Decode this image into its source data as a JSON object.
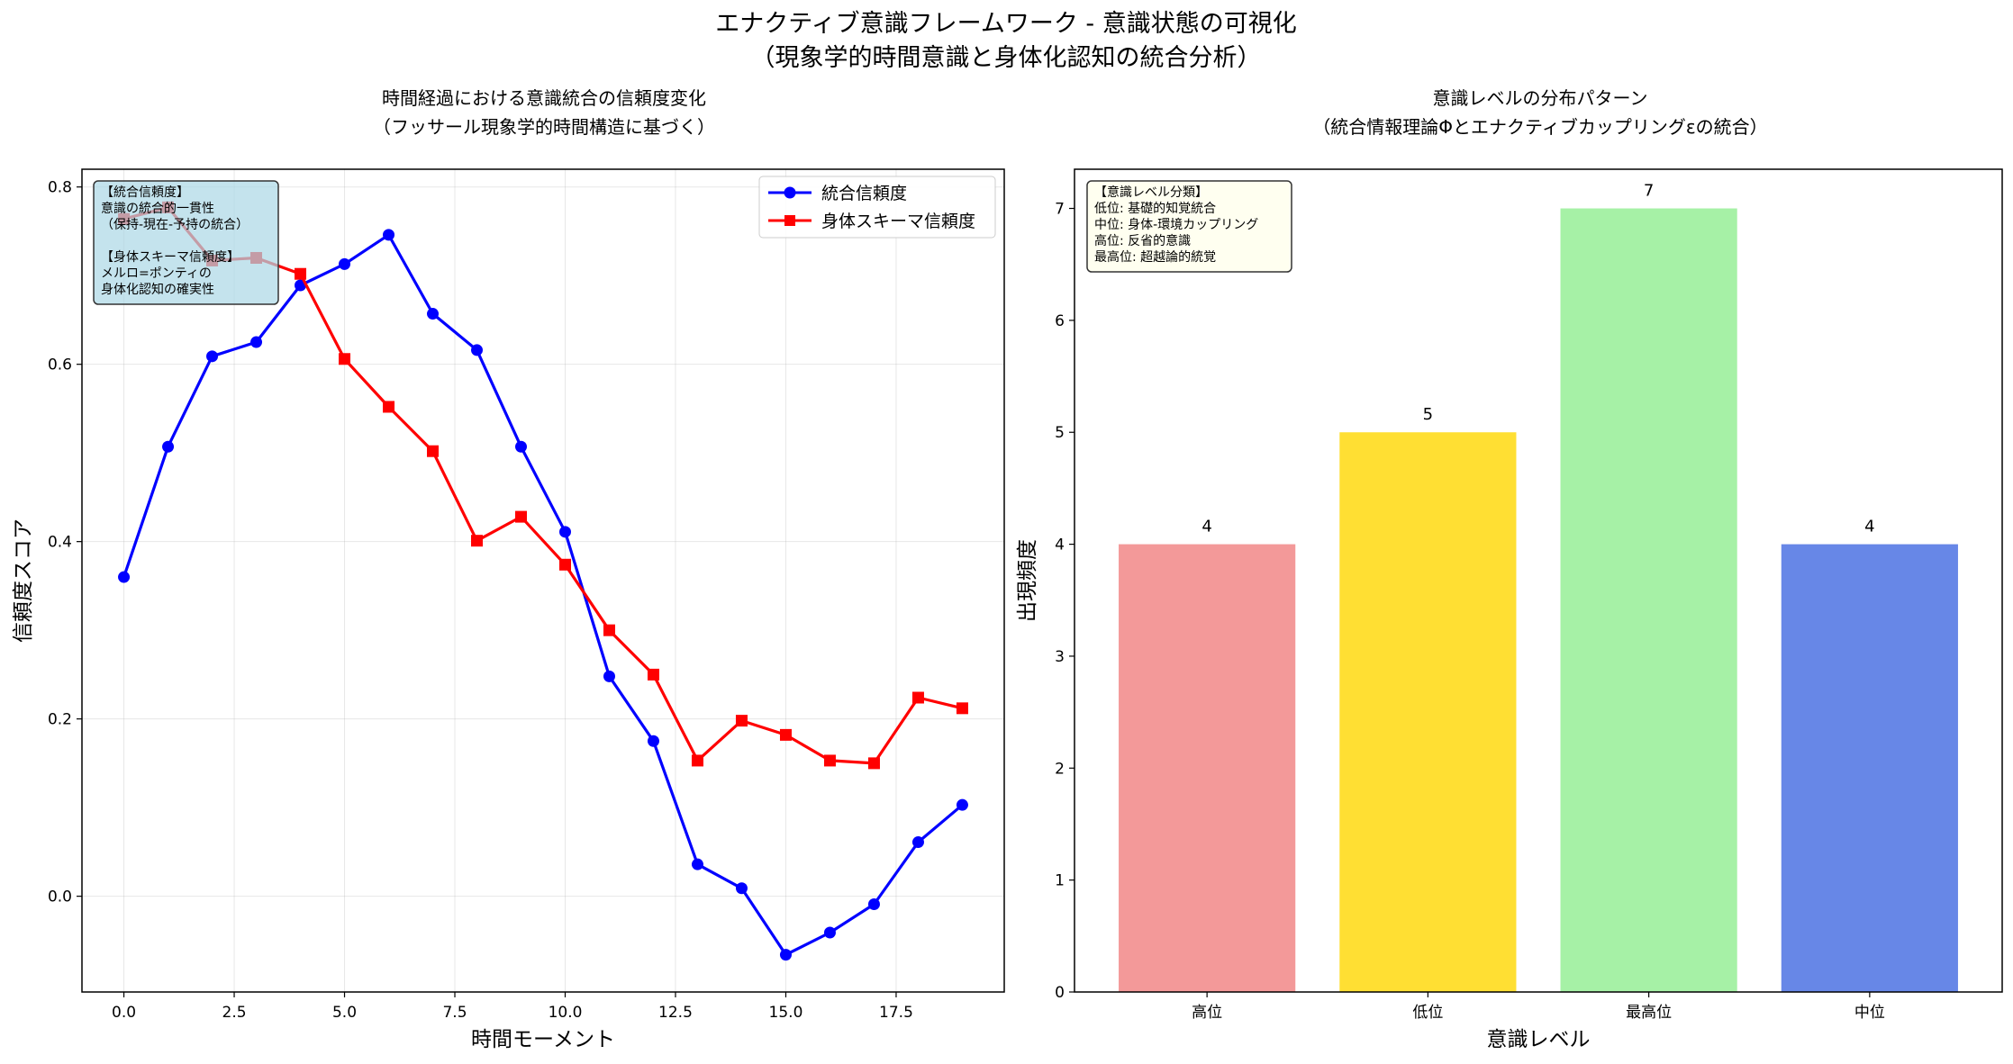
{
  "figure": {
    "title_line1": "エナクティブ意識フレームワーク - 意識状態の可視化",
    "title_line2": "（現象学的時間意識と身体化認知の統合分析）"
  },
  "chart_data": [
    {
      "type": "line",
      "title_line1": "時間経過における意識統合の信頼度変化",
      "title_line2": "（フッサール現象学的時間構造に基づく）",
      "xlabel": "時間モーメント",
      "ylabel": "信頼度スコア",
      "xlim": [
        -0.95,
        19.95
      ],
      "ylim": [
        -0.108,
        0.82
      ],
      "xticks": [
        0.0,
        2.5,
        5.0,
        7.5,
        10.0,
        12.5,
        15.0,
        17.5
      ],
      "xtick_labels": [
        "0.0",
        "2.5",
        "5.0",
        "7.5",
        "10.0",
        "12.5",
        "15.0",
        "17.5"
      ],
      "yticks": [
        0.0,
        0.2,
        0.4,
        0.6,
        0.8
      ],
      "ytick_labels": [
        "0.0",
        "0.2",
        "0.4",
        "0.6",
        "0.8"
      ],
      "grid": true,
      "legend_position": "top-right",
      "x": [
        0,
        1,
        2,
        3,
        4,
        5,
        6,
        7,
        8,
        9,
        10,
        11,
        12,
        13,
        14,
        15,
        16,
        17,
        18,
        19
      ],
      "series": [
        {
          "name": "統合信頼度",
          "color": "#0000ff",
          "marker": "circle",
          "values": [
            0.36,
            0.507,
            0.609,
            0.625,
            0.689,
            0.713,
            0.746,
            0.657,
            0.616,
            0.507,
            0.411,
            0.248,
            0.175,
            0.036,
            0.009,
            -0.066,
            -0.041,
            -0.009,
            0.061,
            0.103
          ]
        },
        {
          "name": "身体スキーマ信頼度",
          "color": "#ff0000",
          "marker": "square",
          "values": [
            0.764,
            0.777,
            0.717,
            0.72,
            0.702,
            0.606,
            0.552,
            0.502,
            0.401,
            0.428,
            0.374,
            0.3,
            0.25,
            0.153,
            0.198,
            0.182,
            0.153,
            0.15,
            0.224,
            0.212
          ]
        }
      ],
      "annotation": {
        "lines": [
          "【統合信頼度】",
          "意識の統合的一貫性",
          "（保持-現在-予持の統合）",
          "",
          "【身体スキーマ信頼度】",
          "メルロ=ポンティの",
          "身体化認知の確実性"
        ],
        "background": "#add8e6"
      }
    },
    {
      "type": "bar",
      "title_line1": "意識レベルの分布パターン",
      "title_line2": "（統合情報理論Φとエナクティブカップリングεの統合）",
      "xlabel": "意識レベル",
      "ylabel": "出現頻度",
      "categories": [
        "高位",
        "低位",
        "最高位",
        "中位"
      ],
      "values": [
        4,
        5,
        7,
        4
      ],
      "value_labels": [
        "4",
        "5",
        "7",
        "4"
      ],
      "colors": [
        "#f08080",
        "#ffd700",
        "#90ee90",
        "#4169e1"
      ],
      "ylim": [
        0,
        7.35
      ],
      "yticks": [
        0,
        1,
        2,
        3,
        4,
        5,
        6,
        7
      ],
      "ytick_labels": [
        "0",
        "1",
        "2",
        "3",
        "4",
        "5",
        "6",
        "7"
      ],
      "grid": false,
      "annotation": {
        "lines": [
          "【意識レベル分類】",
          "低位: 基礎的知覚統合",
          "中位: 身体-環境カップリング",
          "高位: 反省的意識",
          "最高位: 超越論的統覚"
        ],
        "background": "#fffff0"
      }
    }
  ]
}
